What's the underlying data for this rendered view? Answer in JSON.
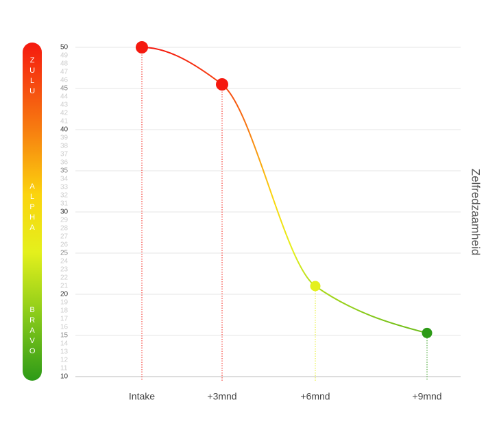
{
  "chart_data": {
    "type": "line",
    "y_label": "Zelfredzaamheid",
    "bands": [
      "ZULU",
      "ALPHA",
      "BRAVO"
    ],
    "categories": [
      "Intake",
      "+3mnd",
      "+6mnd",
      "+9mnd"
    ],
    "values": [
      50,
      45.5,
      21,
      15.3
    ],
    "point_colors": [
      "#f5190f",
      "#f5190f",
      "#e4f01c",
      "#2d9a17"
    ],
    "ylim": [
      10,
      50
    ],
    "yticks": [
      10,
      11,
      12,
      13,
      14,
      15,
      16,
      17,
      18,
      19,
      20,
      21,
      22,
      23,
      24,
      25,
      26,
      27,
      28,
      29,
      30,
      31,
      32,
      33,
      34,
      35,
      36,
      37,
      38,
      39,
      40,
      41,
      42,
      43,
      44,
      45,
      46,
      47,
      48,
      49,
      50
    ],
    "grid": true
  }
}
